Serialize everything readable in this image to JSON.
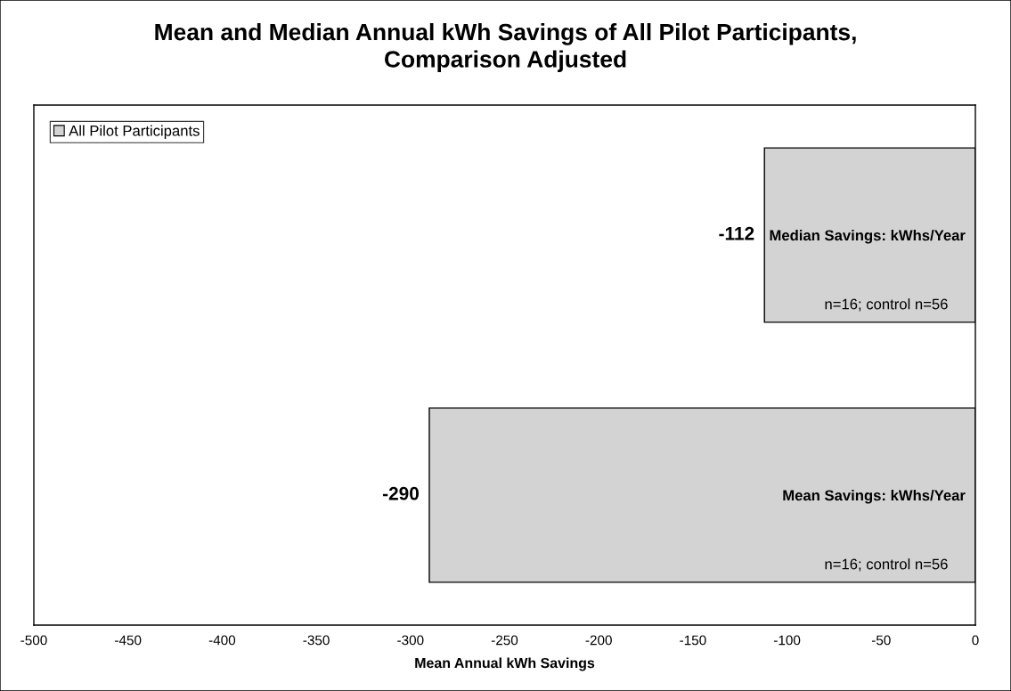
{
  "chart_data": {
    "type": "bar",
    "orientation": "horizontal",
    "title": "Mean and Median Annual kWh Savings of All Pilot Participants,\nComparison Adjusted",
    "xlabel": "Mean Annual kWh Savings",
    "categories": [
      "Median Savings: kWhs/Year",
      "Mean Savings: kWhs/Year"
    ],
    "series": [
      {
        "name": "All Pilot Participants",
        "color": "#d3d3d3",
        "values": [
          -112,
          -290
        ]
      }
    ],
    "xlim": [
      -500,
      0
    ],
    "xticks": [
      -500,
      -450,
      -400,
      -350,
      -300,
      -250,
      -200,
      -150,
      -100,
      -50,
      0
    ],
    "data_labels": true,
    "legend": "top left",
    "grid": false,
    "annotations": [
      "n=16; control n=56",
      "n=16; control n=56"
    ]
  }
}
